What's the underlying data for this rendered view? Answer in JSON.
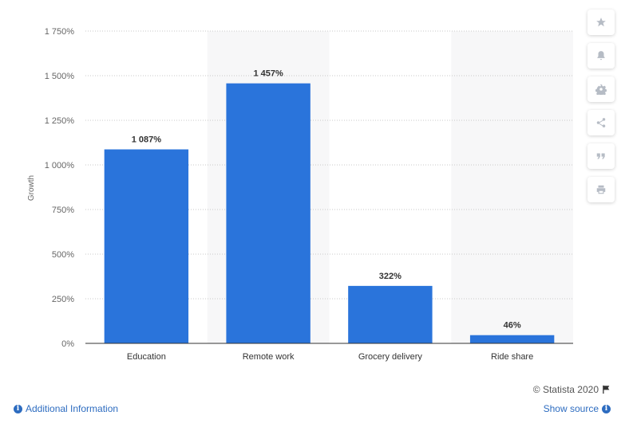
{
  "chart_data": {
    "type": "bar",
    "categories": [
      "Education",
      "Remote work",
      "Grocery delivery",
      "Ride share"
    ],
    "values": [
      1087,
      1457,
      322,
      46
    ],
    "value_labels": [
      "1 087%",
      "1 457%",
      "322%",
      "46%"
    ],
    "ylabel": "Growth",
    "ylim": [
      0,
      1750
    ],
    "yticks": [
      0,
      250,
      500,
      750,
      1000,
      1250,
      1500,
      1750
    ],
    "ytick_labels": [
      "0%",
      "250%",
      "500%",
      "750%",
      "1 000%",
      "1 250%",
      "1 500%",
      "1 750%"
    ],
    "grid": true,
    "bar_color": "#2a74db"
  },
  "toolbar": {
    "icons": [
      "star-icon",
      "bell-icon",
      "gear-icon",
      "share-icon",
      "quote-icon",
      "print-icon"
    ]
  },
  "footer": {
    "credit": "© Statista 2020",
    "additional_info": "Additional Information",
    "show_source": "Show source"
  }
}
